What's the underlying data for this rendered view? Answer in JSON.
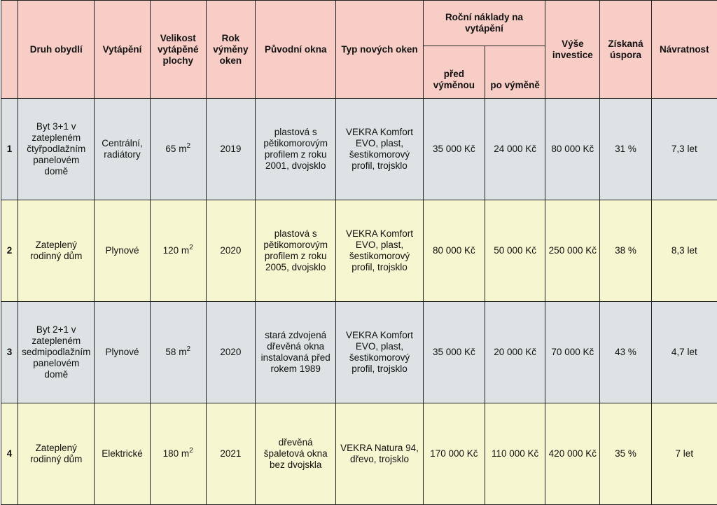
{
  "headers": {
    "num": "",
    "druh": "Druh obydlí",
    "vytapeni": "Vytápění",
    "velikost": "Velikost vytápěné plochy",
    "rok": "Rok výměny oken",
    "puvodni": "Původní okna",
    "typ": "Typ nových oken",
    "rocni": "Roční náklady na vytápění",
    "pred": "před výměnou",
    "po": "po výměně",
    "vyse": "Výše investice",
    "ziskana": "Získaná úspora",
    "navratnost": "Návratnost"
  },
  "area_sup": "2",
  "rows": [
    {
      "num": "1",
      "druh": "Byt 3+1 v zatepleném čtyřpodlažním panelovém domě",
      "vytapeni": "Centrální, radiátory",
      "velikost": "65 m",
      "rok": "2019",
      "puvodni": "plastová s pětikomorovým profilem z roku 2001, dvojsklo",
      "typ": "VEKRA Komfort EVO, plast, šestikomorový profil, trojsklo",
      "pred": "35 000 Kč",
      "po": "24 000 Kč",
      "vyse": "80 000 Kč",
      "ziskana": "31 %",
      "navratnost": "7,3 let"
    },
    {
      "num": "2",
      "druh": "Zateplený rodinný dům",
      "vytapeni": "Plynové",
      "velikost": "120 m",
      "rok": "2020",
      "puvodni": "plastová s pětikomorovým profilem z roku 2005, dvojsklo",
      "typ": "VEKRA Komfort EVO, plast, šestikomorový profil, trojsklo",
      "pred": "80 000 Kč",
      "po": "50 000 Kč",
      "vyse": "250 000 Kč",
      "ziskana": "38 %",
      "navratnost": "8,3 let"
    },
    {
      "num": "3",
      "druh": "Byt 2+1 v zatepleném sedmipodlažním panelovém domě",
      "vytapeni": "Plynové",
      "velikost": "58 m",
      "rok": "2020",
      "puvodni": "stará zdvojená dřevěná okna instalovaná před rokem 1989",
      "typ": "VEKRA Komfort EVO, plast, šestikomorový profil, trojsklo",
      "pred": "35 000 Kč",
      "po": "20 000 Kč",
      "vyse": "70 000 Kč",
      "ziskana": "43 %",
      "navratnost": "4,7 let"
    },
    {
      "num": "4",
      "druh": "Zateplený rodinný dům",
      "vytapeni": "Elektrické",
      "velikost": "180 m",
      "rok": "2021",
      "puvodni": "dřevěná špaletová okna bez dvojskla",
      "typ": "VEKRA Natura 94, dřevo, trojsklo",
      "pred": "170 000 Kč",
      "po": "110 000 Kč",
      "vyse": "420 000 Kč",
      "ziskana": "35 %",
      "navratnost": "7 let"
    }
  ],
  "colors": {
    "header": "#f8cdc6",
    "row_gray": "#dde2e4",
    "row_yellow": "#f6f7d0"
  }
}
